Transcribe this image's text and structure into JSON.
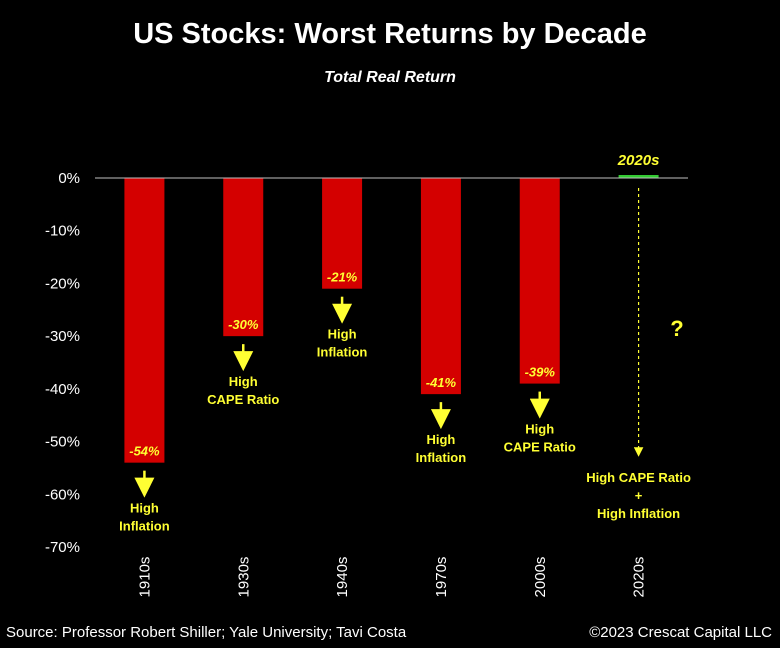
{
  "header": {
    "title": "US Stocks: Worst Returns by Decade",
    "subtitle": "Total Real Return"
  },
  "footer": {
    "source": "Source: Professor Robert Shiller; Yale University; Tavi Costa",
    "copyright": "©2023 Crescat Capital LLC"
  },
  "colors": {
    "bar": "#d40000",
    "highlight": "#33cc33",
    "annotation": "#ffff33",
    "axis": "#bfbfbf"
  },
  "chart_data": {
    "type": "bar",
    "categories": [
      "1910s",
      "1930s",
      "1940s",
      "1970s",
      "2000s",
      "2020s"
    ],
    "values": [
      -54,
      -30,
      -21,
      -41,
      -39,
      0
    ],
    "value_labels": [
      "-54%",
      "-30%",
      "-21%",
      "-41%",
      "-39%",
      ""
    ],
    "annotations": [
      [
        "High",
        "Inflation"
      ],
      [
        "High",
        "CAPE Ratio"
      ],
      [
        "High",
        "Inflation"
      ],
      [
        "High",
        "Inflation"
      ],
      [
        "High",
        "CAPE Ratio"
      ],
      [
        "High CAPE Ratio",
        "+",
        "High Inflation"
      ]
    ],
    "highlight_label": "2020s",
    "question_mark": "?",
    "ylim": [
      -70,
      0
    ],
    "yticks": [
      0,
      -10,
      -20,
      -30,
      -40,
      -50,
      -60,
      -70
    ],
    "ytick_labels": [
      "0%",
      "-10%",
      "-20%",
      "-30%",
      "-40%",
      "-50%",
      "-60%",
      "-70%"
    ],
    "title": "US Stocks: Worst Returns by Decade",
    "subtitle": "Total Real Return",
    "xlabel": "",
    "ylabel": "",
    "grid": false,
    "legend": "none"
  }
}
